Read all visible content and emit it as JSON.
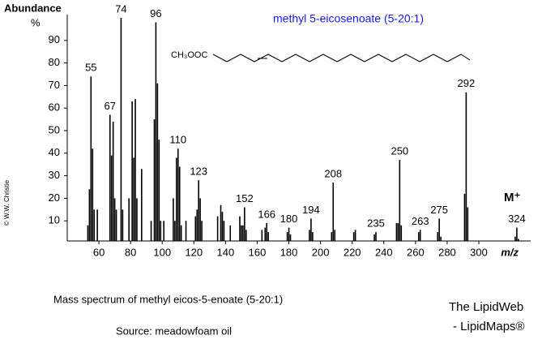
{
  "chart_data": {
    "type": "spectrum",
    "title": "methyl 5-eicosenoate (5-20:1)",
    "y_label": "Abundance",
    "y_unit": "%",
    "x_label": "m/z",
    "structure_label": "CH₃OOC",
    "molecular_ion_label": "M⁺",
    "caption": "Mass spectrum of methyl eicos-5-enoate (5-20:1)",
    "source": "Source:  meadowfoam oil",
    "credit": [
      "The LipidWeb",
      "- LipidMaps®"
    ],
    "copyright": "© W.W. Christie",
    "xlim": [
      40,
      344
    ],
    "ylim": [
      0,
      100
    ],
    "xticks": [
      60,
      80,
      100,
      120,
      140,
      160,
      180,
      200,
      220,
      240,
      260,
      280,
      300
    ],
    "yticks": [
      10,
      20,
      30,
      40,
      50,
      60,
      70,
      80,
      90
    ],
    "color": "#000000",
    "series": [
      {
        "labels": true,
        "x": [
          55,
          67,
          74,
          96,
          110,
          123,
          152,
          166,
          180,
          194,
          208,
          235,
          250,
          263,
          275,
          292,
          324
        ],
        "values": [
          74,
          57,
          100,
          98,
          42,
          28,
          16,
          9,
          7,
          11,
          27,
          5,
          37,
          6,
          11,
          67,
          7
        ]
      },
      {
        "labels": false,
        "x": [
          53,
          54,
          56,
          57,
          59,
          68,
          69,
          70,
          71,
          75,
          79,
          81,
          82,
          83,
          84,
          87,
          93,
          95,
          97,
          98,
          99,
          101,
          107,
          108,
          109,
          111,
          112,
          115,
          121,
          122,
          124,
          125,
          135,
          137,
          138,
          139,
          143,
          149,
          150,
          151,
          153,
          163,
          165,
          167,
          179,
          181,
          193,
          195,
          207,
          209,
          221,
          222,
          234,
          248,
          249,
          251,
          262,
          274,
          276,
          291,
          293,
          323,
          325
        ],
        "values": [
          8,
          24,
          42,
          15,
          15,
          39,
          54,
          20,
          15,
          15,
          20,
          63,
          38,
          64,
          20,
          33,
          10,
          55,
          71,
          46,
          10,
          10,
          20,
          10,
          38,
          34,
          8,
          10,
          12,
          15,
          20,
          10,
          12,
          17,
          14,
          10,
          8,
          12,
          8,
          8,
          6,
          6,
          7,
          5,
          5,
          4,
          6,
          5,
          5,
          6,
          5,
          6,
          4,
          9,
          9,
          8,
          5,
          5,
          3,
          22,
          16,
          3,
          2
        ]
      }
    ]
  }
}
